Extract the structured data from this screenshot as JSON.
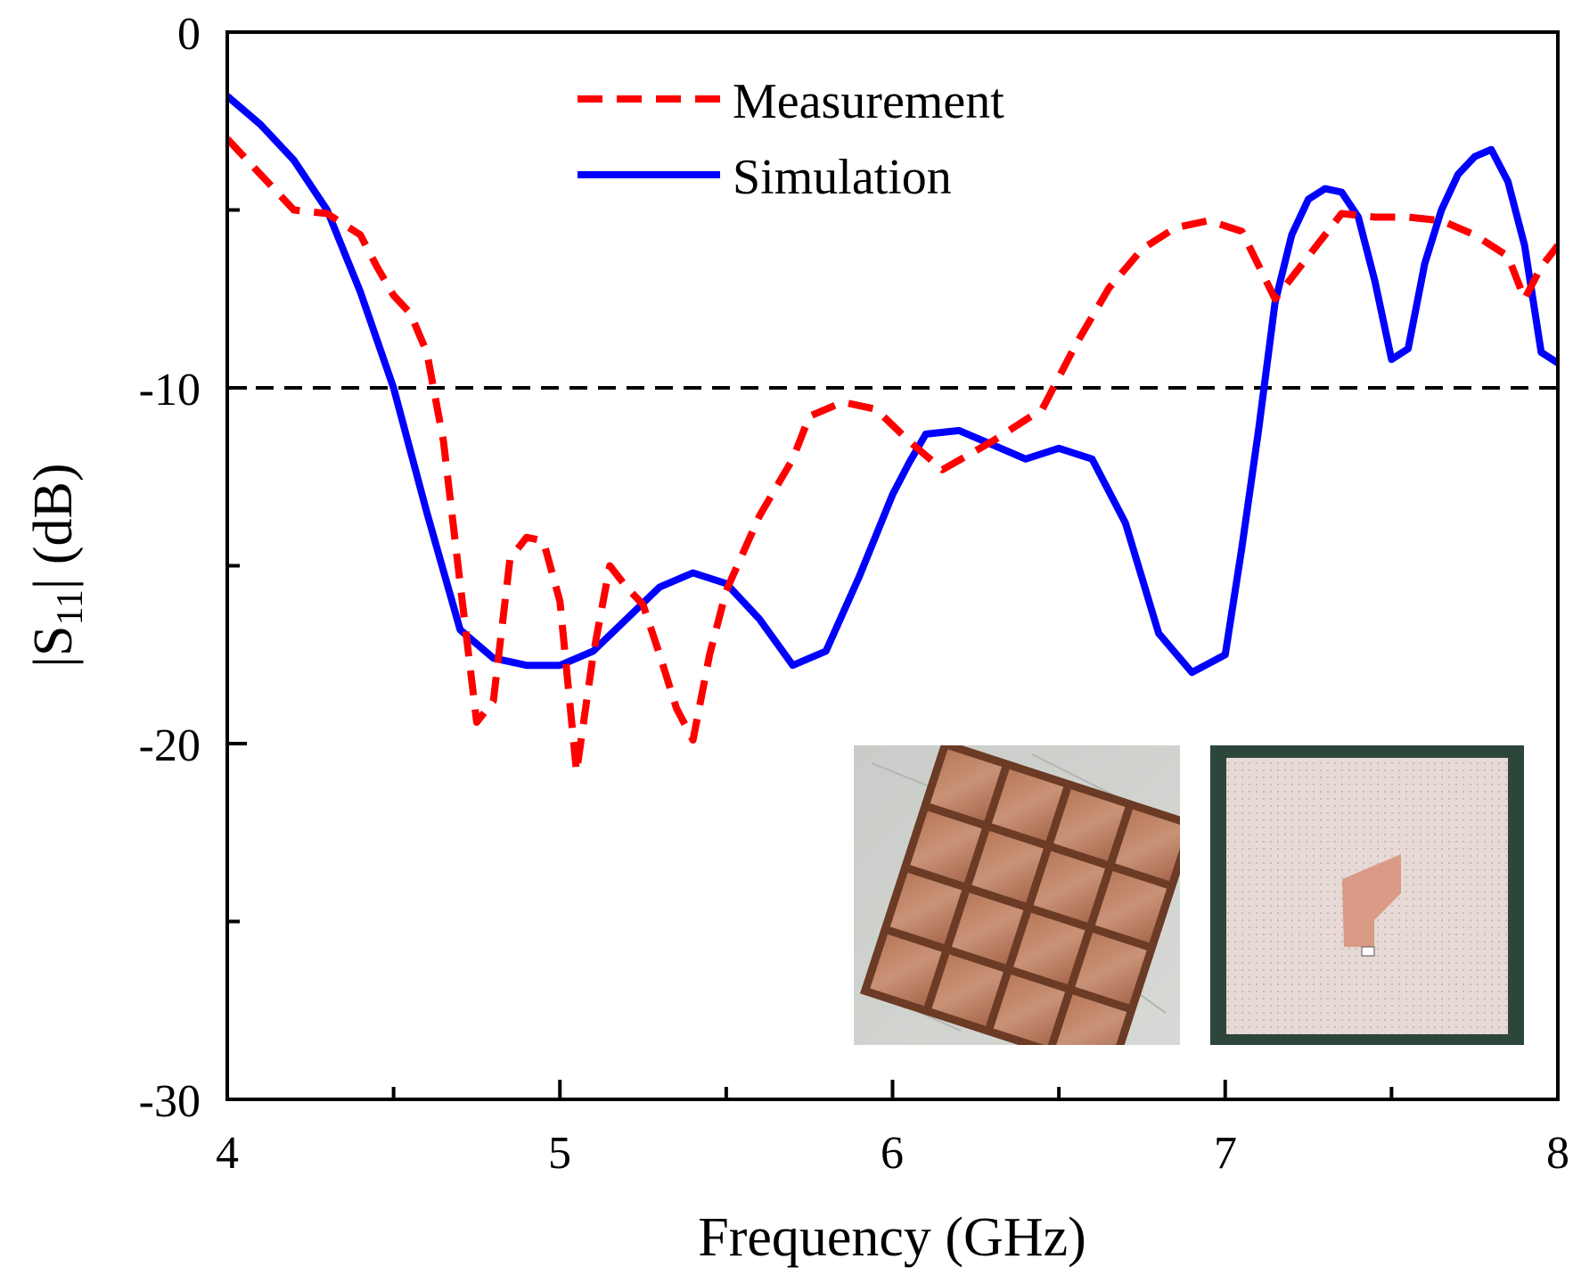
{
  "chart_data": {
    "type": "line",
    "title": "",
    "xlabel": "Frequency (GHz)",
    "ylabel_parts": {
      "pre": "|S",
      "sub": "11",
      "post": "| (dB)"
    },
    "xlim": [
      4,
      8
    ],
    "ylim": [
      -30,
      0
    ],
    "x_ticks": [
      4,
      5,
      6,
      7,
      8
    ],
    "x_tick_labels": [
      "4",
      "5",
      "6",
      "7",
      "8"
    ],
    "y_ticks": [
      0,
      -10,
      -20,
      -30
    ],
    "y_tick_labels": [
      "0",
      "-10",
      "-20",
      "-30"
    ],
    "reference_line": {
      "y": -10,
      "style": "dashed",
      "color": "#000000"
    },
    "legend_position": "top-center",
    "series": [
      {
        "name": "Measurement",
        "color": "#ff0000",
        "style": "dashed",
        "x": [
          4.0,
          4.1,
          4.2,
          4.3,
          4.4,
          4.45,
          4.5,
          4.55,
          4.6,
          4.65,
          4.7,
          4.75,
          4.8,
          4.85,
          4.9,
          4.95,
          5.0,
          5.05,
          5.1,
          5.15,
          5.2,
          5.25,
          5.3,
          5.35,
          5.4,
          5.45,
          5.5,
          5.6,
          5.7,
          5.75,
          5.85,
          5.95,
          6.05,
          6.15,
          6.3,
          6.45,
          6.55,
          6.65,
          6.75,
          6.85,
          6.95,
          7.05,
          7.15,
          7.25,
          7.35,
          7.45,
          7.55,
          7.65,
          7.75,
          7.85,
          7.9,
          7.95,
          8.0
        ],
        "values": [
          -3.0,
          -4.0,
          -5.0,
          -5.1,
          -5.7,
          -6.6,
          -7.4,
          -7.9,
          -9.0,
          -11.5,
          -15.5,
          -19.4,
          -18.8,
          -14.8,
          -14.2,
          -14.3,
          -16.0,
          -20.8,
          -17.5,
          -15.0,
          -15.6,
          -16.1,
          -17.5,
          -19.0,
          -19.9,
          -17.5,
          -15.7,
          -13.6,
          -12.0,
          -10.8,
          -10.4,
          -10.6,
          -11.5,
          -12.3,
          -11.5,
          -10.6,
          -8.8,
          -7.2,
          -6.1,
          -5.5,
          -5.3,
          -5.6,
          -7.5,
          -6.3,
          -5.1,
          -5.2,
          -5.2,
          -5.3,
          -5.7,
          -6.3,
          -7.5,
          -6.6,
          -6.0
        ]
      },
      {
        "name": "Simulation",
        "color": "#0000ff",
        "style": "solid",
        "x": [
          4.0,
          4.1,
          4.2,
          4.3,
          4.4,
          4.5,
          4.6,
          4.7,
          4.8,
          4.9,
          5.0,
          5.1,
          5.2,
          5.3,
          5.4,
          5.5,
          5.6,
          5.7,
          5.8,
          5.9,
          6.0,
          6.05,
          6.1,
          6.2,
          6.3,
          6.4,
          6.5,
          6.6,
          6.7,
          6.8,
          6.9,
          7.0,
          7.05,
          7.1,
          7.15,
          7.2,
          7.25,
          7.3,
          7.35,
          7.4,
          7.45,
          7.5,
          7.55,
          7.6,
          7.65,
          7.7,
          7.75,
          7.8,
          7.85,
          7.9,
          7.95,
          8.0
        ],
        "values": [
          -1.8,
          -2.6,
          -3.6,
          -5.0,
          -7.3,
          -10.0,
          -13.5,
          -16.8,
          -17.6,
          -17.8,
          -17.8,
          -17.4,
          -16.5,
          -15.6,
          -15.2,
          -15.5,
          -16.5,
          -17.8,
          -17.4,
          -15.3,
          -13.0,
          -12.1,
          -11.3,
          -11.2,
          -11.6,
          -12.0,
          -11.7,
          -12.0,
          -13.8,
          -16.9,
          -18.0,
          -17.5,
          -14.5,
          -11.2,
          -7.6,
          -5.7,
          -4.7,
          -4.4,
          -4.5,
          -5.2,
          -7.0,
          -9.2,
          -8.9,
          -6.5,
          -5.0,
          -4.0,
          -3.5,
          -3.3,
          -4.2,
          -6.0,
          -9.0,
          -9.3
        ]
      }
    ]
  }
}
